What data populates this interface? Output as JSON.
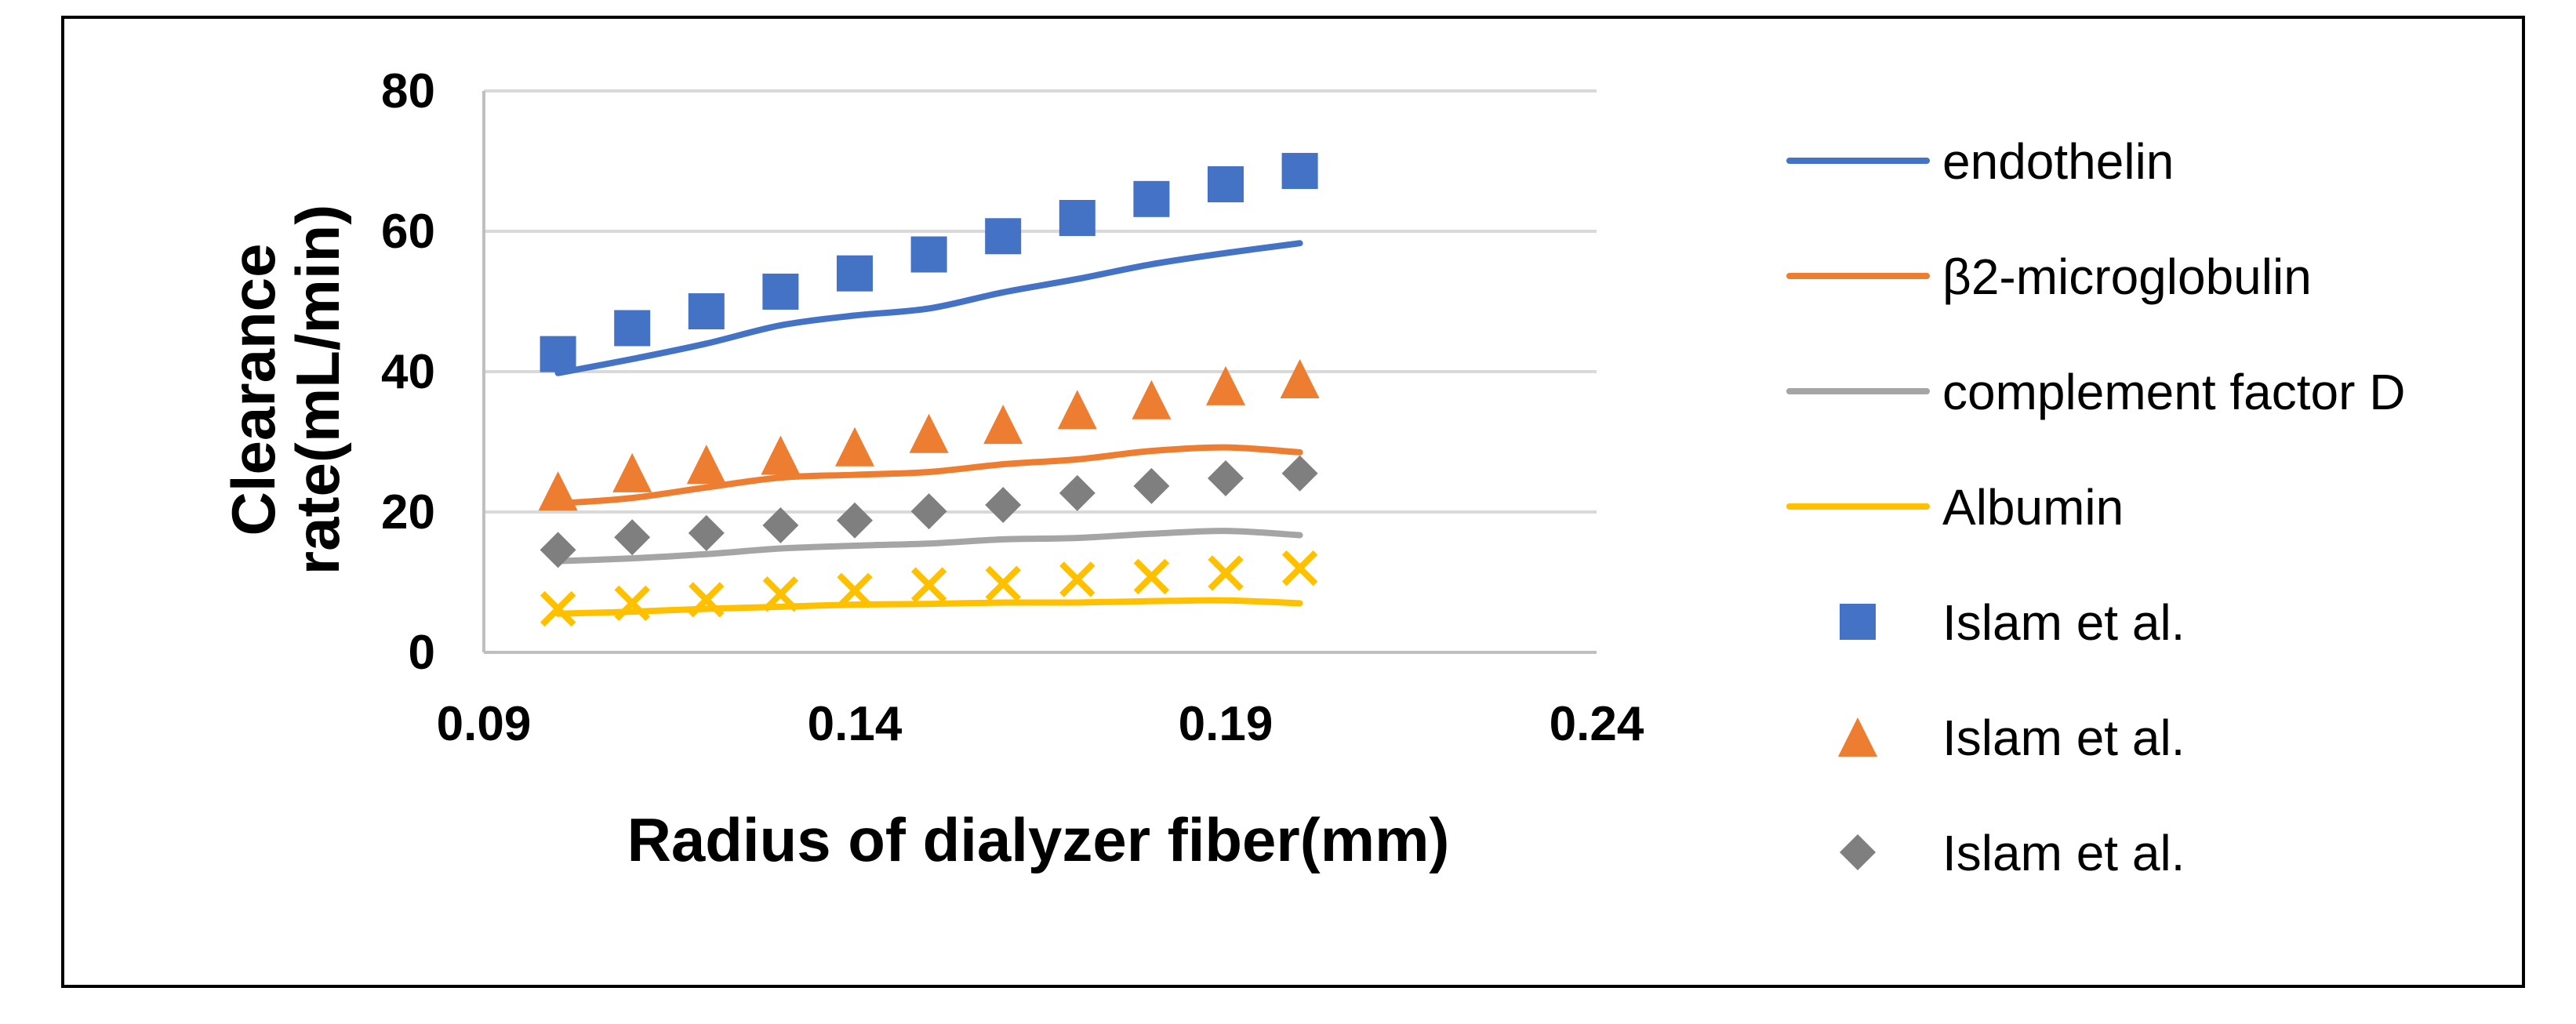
{
  "chart_data": {
    "type": "line",
    "xlabel": "Radius of dialyzer fiber(mm)",
    "ylabel_lines": [
      "Clearance",
      "rate(mL/min)"
    ],
    "xlim": [
      0.09,
      0.24
    ],
    "ylim": [
      0,
      80
    ],
    "xticks": [
      0.09,
      0.14,
      0.19,
      0.24
    ],
    "xtick_labels": [
      "0.09",
      "0.14",
      "0.19",
      "0.24"
    ],
    "yticks": [
      0,
      20,
      40,
      60,
      80
    ],
    "ytick_labels": [
      "0",
      "20",
      "40",
      "60",
      "80"
    ],
    "grid": "horizontal",
    "legend_position": "right",
    "x": [
      0.1,
      0.11,
      0.12,
      0.13,
      0.14,
      0.15,
      0.16,
      0.17,
      0.18,
      0.19,
      0.2
    ],
    "series": [
      {
        "name": "endothelin",
        "kind": "line",
        "color": "#4472C4",
        "values": [
          39.8,
          41.8,
          44.0,
          46.6,
          48.0,
          49.0,
          51.3,
          53.2,
          55.3,
          56.9,
          58.3
        ]
      },
      {
        "name": "β2-microglobulin",
        "kind": "line",
        "color": "#ED7D31",
        "values": [
          21.2,
          22.0,
          23.5,
          24.9,
          25.3,
          25.7,
          26.8,
          27.5,
          28.7,
          29.2,
          28.5
        ]
      },
      {
        "name": "complement factor D",
        "kind": "line",
        "color": "#A5A5A5",
        "values": [
          13.0,
          13.4,
          14.0,
          14.8,
          15.2,
          15.5,
          16.1,
          16.3,
          16.9,
          17.3,
          16.7
        ]
      },
      {
        "name": "Albumin",
        "kind": "line",
        "color": "#FFC000",
        "values": [
          5.5,
          5.8,
          6.2,
          6.5,
          6.8,
          6.9,
          7.1,
          7.1,
          7.3,
          7.4,
          7.0
        ]
      },
      {
        "name": "Islam et al.",
        "kind": "marker",
        "marker": "square",
        "color": "#4472C4",
        "values": [
          42.5,
          46.2,
          48.6,
          51.4,
          54.0,
          56.7,
          59.3,
          61.9,
          64.6,
          66.7,
          68.6
        ]
      },
      {
        "name": "Islam et al.",
        "kind": "marker",
        "marker": "triangle",
        "color": "#ED7D31",
        "values": [
          23.0,
          25.6,
          26.8,
          28.1,
          29.3,
          31.2,
          32.5,
          34.6,
          36.0,
          38.0,
          39.0
        ]
      },
      {
        "name": "Islam et al.",
        "kind": "marker",
        "marker": "diamond",
        "color": "#7F7F7F",
        "values": [
          14.6,
          16.4,
          17.0,
          18.1,
          18.8,
          20.1,
          21.0,
          22.7,
          23.7,
          24.8,
          25.5
        ]
      },
      {
        "name": "",
        "kind": "marker",
        "marker": "x",
        "color": "#FFC000",
        "values": [
          6.2,
          7.0,
          7.5,
          8.3,
          8.8,
          9.6,
          9.8,
          10.4,
          10.8,
          11.3,
          12.0
        ]
      }
    ]
  }
}
